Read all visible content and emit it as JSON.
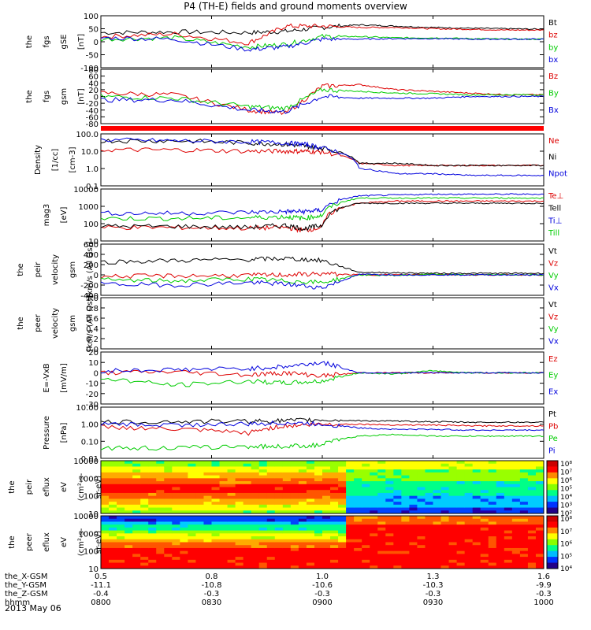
{
  "title": "P4 (TH-E) fields and ground moments overview",
  "date": "2013 May 06",
  "colors": {
    "black": "#000000",
    "red": "#dd0000",
    "green": "#00cc00",
    "blue": "#0000dd",
    "bar_red": "#ff0000",
    "axis": "#000000"
  },
  "chart_data": [
    {
      "type": "line",
      "panel": "fgs_gse",
      "ylabel": [
        "the",
        "fgs",
        "gSE",
        "[nT]"
      ],
      "yticks": [
        "100",
        "50",
        "0",
        "-50",
        "-100"
      ],
      "ylim": [
        -100,
        100
      ],
      "yscale": "linear",
      "legend": [
        {
          "name": "Bt",
          "color": "black"
        },
        {
          "name": "bz",
          "color": "red"
        },
        {
          "name": "by",
          "color": "green"
        },
        {
          "name": "bx",
          "color": "blue"
        }
      ],
      "series": [
        {
          "name": "Bt",
          "color": "black",
          "x": [
            0,
            20,
            40,
            50,
            60,
            70,
            80,
            90,
            100,
            110,
            120
          ],
          "y": [
            35,
            38,
            35,
            40,
            55,
            65,
            60,
            55,
            52,
            50,
            48
          ]
        },
        {
          "name": "bz",
          "color": "red",
          "x": [
            0,
            20,
            40,
            50,
            60,
            70,
            80,
            90,
            100,
            110,
            120
          ],
          "y": [
            20,
            30,
            -5,
            60,
            60,
            55,
            55,
            50,
            48,
            45,
            45
          ]
        },
        {
          "name": "by",
          "color": "green",
          "x": [
            0,
            20,
            40,
            50,
            60,
            70,
            80,
            90,
            100,
            110,
            120
          ],
          "y": [
            10,
            15,
            -20,
            -10,
            20,
            20,
            15,
            15,
            12,
            10,
            10
          ]
        },
        {
          "name": "bx",
          "color": "blue",
          "x": [
            0,
            20,
            40,
            50,
            60,
            70,
            80,
            90,
            100,
            110,
            120
          ],
          "y": [
            15,
            10,
            -30,
            -20,
            10,
            10,
            12,
            12,
            10,
            10,
            10
          ]
        }
      ]
    },
    {
      "type": "line",
      "panel": "fgs_gsm",
      "ylabel": [
        "the",
        "fgs",
        "gsm",
        "[nT]"
      ],
      "yticks": [
        "80",
        "60",
        "40",
        "20",
        "0",
        "-20",
        "-40",
        "-60",
        "-80"
      ],
      "ylim": [
        -80,
        80
      ],
      "yscale": "linear",
      "legend": [
        {
          "name": "Bz",
          "color": "red"
        },
        {
          "name": "By",
          "color": "green"
        },
        {
          "name": "Bx",
          "color": "blue"
        }
      ],
      "series": [
        {
          "name": "Bz",
          "color": "red",
          "x": [
            0,
            20,
            40,
            50,
            60,
            70,
            80,
            90,
            100,
            110,
            120
          ],
          "y": [
            10,
            5,
            -40,
            -50,
            30,
            35,
            20,
            15,
            10,
            5,
            5
          ]
        },
        {
          "name": "By",
          "color": "green",
          "x": [
            0,
            20,
            40,
            50,
            60,
            70,
            80,
            90,
            100,
            110,
            120
          ],
          "y": [
            0,
            -5,
            -30,
            -35,
            20,
            15,
            10,
            8,
            5,
            5,
            5
          ]
        },
        {
          "name": "Bx",
          "color": "blue",
          "x": [
            0,
            20,
            40,
            50,
            60,
            70,
            80,
            90,
            100,
            110,
            120
          ],
          "y": [
            -10,
            -10,
            -40,
            -45,
            0,
            -5,
            -5,
            -5,
            0,
            0,
            0
          ]
        }
      ]
    },
    {
      "type": "line",
      "panel": "density",
      "ylabel": [
        "Density",
        "[1/cc]",
        "[cm-3]"
      ],
      "yticks": [
        "100.0",
        "10.0",
        "1.0",
        "0.1"
      ],
      "ylim": [
        0.1,
        100
      ],
      "yscale": "log",
      "legend": [
        {
          "name": "Ne",
          "color": "red"
        },
        {
          "name": "Ni",
          "color": "black"
        },
        {
          "name": "Npot",
          "color": "blue"
        }
      ],
      "series": [
        {
          "name": "Ne",
          "color": "red",
          "x": [
            0,
            20,
            40,
            50,
            55,
            60,
            70,
            80,
            90,
            100,
            110,
            120
          ],
          "y": [
            12,
            12,
            10,
            10,
            10,
            9,
            2,
            1.5,
            1.5,
            1.5,
            1.5,
            1.5
          ]
        },
        {
          "name": "Ni",
          "color": "black",
          "x": [
            0,
            20,
            40,
            50,
            55,
            60,
            70,
            80,
            90,
            100,
            110,
            120
          ],
          "y": [
            40,
            40,
            30,
            25,
            20,
            15,
            2,
            2,
            1.5,
            1.5,
            1.5,
            1.5
          ]
        },
        {
          "name": "Npot",
          "color": "blue",
          "x": [
            0,
            20,
            40,
            50,
            55,
            60,
            70,
            80,
            90,
            100,
            110,
            120
          ],
          "y": [
            45,
            40,
            35,
            30,
            25,
            15,
            1,
            0.5,
            0.5,
            0.4,
            0.4,
            0.4
          ]
        }
      ]
    },
    {
      "type": "line",
      "panel": "temperature",
      "ylabel": [
        "mag3",
        "[eV]"
      ],
      "yticks": [
        "10000",
        "1000",
        "100",
        "10"
      ],
      "ylim": [
        10,
        10000
      ],
      "yscale": "log",
      "legend": [
        {
          "name": "Te⊥",
          "color": "red"
        },
        {
          "name": "Tell",
          "color": "black"
        },
        {
          "name": "Ti⊥",
          "color": "blue"
        },
        {
          "name": "Till",
          "color": "green"
        }
      ],
      "series": [
        {
          "name": "Te⊥",
          "color": "red",
          "x": [
            0,
            20,
            40,
            50,
            55,
            60,
            70,
            80,
            90,
            100,
            110,
            120
          ],
          "y": [
            60,
            60,
            55,
            60,
            40,
            60,
            1500,
            2000,
            2000,
            2000,
            2000,
            2000
          ]
        },
        {
          "name": "Tell",
          "color": "black",
          "x": [
            0,
            20,
            40,
            50,
            55,
            60,
            70,
            80,
            90,
            100,
            110,
            120
          ],
          "y": [
            70,
            70,
            60,
            80,
            50,
            80,
            1500,
            1500,
            1500,
            1500,
            1500,
            1500
          ]
        },
        {
          "name": "Ti⊥",
          "color": "blue",
          "x": [
            0,
            20,
            40,
            50,
            55,
            60,
            70,
            80,
            90,
            100,
            110,
            120
          ],
          "y": [
            400,
            400,
            450,
            500,
            500,
            600,
            4000,
            4500,
            5000,
            5000,
            5000,
            5000
          ]
        },
        {
          "name": "Till",
          "color": "green",
          "x": [
            0,
            20,
            40,
            50,
            55,
            60,
            70,
            80,
            90,
            100,
            110,
            120
          ],
          "y": [
            200,
            200,
            220,
            250,
            200,
            300,
            3000,
            3000,
            3000,
            3000,
            3000,
            3000
          ]
        }
      ]
    },
    {
      "type": "line",
      "panel": "peir_velocity",
      "ylabel": [
        "the",
        "peir",
        "velocity",
        "gsm",
        "[km/s (All Qs)]"
      ],
      "yticks": [
        "600",
        "400",
        "200",
        "0",
        "-200",
        "-400"
      ],
      "ylim": [
        -400,
        600
      ],
      "yscale": "linear",
      "legend": [
        {
          "name": "Vt",
          "color": "black"
        },
        {
          "name": "Vz",
          "color": "red"
        },
        {
          "name": "Vy",
          "color": "green"
        },
        {
          "name": "Vx",
          "color": "blue"
        }
      ],
      "series": [
        {
          "name": "Vt",
          "color": "black",
          "x": [
            0,
            20,
            40,
            50,
            60,
            70,
            80,
            90,
            100,
            110,
            120
          ],
          "y": [
            250,
            280,
            300,
            320,
            280,
            50,
            40,
            30,
            30,
            30,
            30
          ]
        },
        {
          "name": "Vz",
          "color": "red",
          "x": [
            0,
            20,
            40,
            50,
            60,
            70,
            80,
            90,
            100,
            110,
            120
          ],
          "y": [
            -30,
            -20,
            -10,
            0,
            20,
            0,
            0,
            10,
            0,
            0,
            0
          ]
        },
        {
          "name": "Vy",
          "color": "green",
          "x": [
            0,
            20,
            40,
            50,
            60,
            70,
            80,
            90,
            100,
            110,
            120
          ],
          "y": [
            -100,
            -120,
            -80,
            -120,
            -150,
            0,
            -10,
            10,
            0,
            0,
            0
          ]
        },
        {
          "name": "Vx",
          "color": "blue",
          "x": [
            0,
            20,
            40,
            50,
            60,
            70,
            80,
            90,
            100,
            110,
            120
          ],
          "y": [
            -180,
            -200,
            -150,
            -180,
            -250,
            10,
            0,
            0,
            0,
            0,
            0
          ]
        }
      ]
    },
    {
      "type": "line",
      "panel": "peer_velocity",
      "ylabel": [
        "the",
        "peer",
        "velocity",
        "gsm",
        "[km/s (All Qs)]"
      ],
      "yticks": [
        "1.0",
        "0.8",
        "0.6",
        "0.4",
        "0.2",
        "0.0"
      ],
      "ylim": [
        0,
        1
      ],
      "yscale": "linear",
      "legend": [
        {
          "name": "Vt",
          "color": "black"
        },
        {
          "name": "Vz",
          "color": "red"
        },
        {
          "name": "Vy",
          "color": "green"
        },
        {
          "name": "Vx",
          "color": "blue"
        }
      ],
      "series": []
    },
    {
      "type": "line",
      "panel": "e_field",
      "ylabel": [
        "E=-VxB",
        "[mV/m]"
      ],
      "yticks": [
        "20",
        "10",
        "0",
        "-10",
        "-20",
        "-30"
      ],
      "ylim": [
        -30,
        20
      ],
      "yscale": "linear",
      "legend": [
        {
          "name": "Ez",
          "color": "red"
        },
        {
          "name": "Ey",
          "color": "green"
        },
        {
          "name": "Ex",
          "color": "blue"
        }
      ],
      "series": [
        {
          "name": "Ez",
          "color": "red",
          "x": [
            0,
            20,
            40,
            50,
            60,
            70,
            80,
            90,
            100,
            110,
            120
          ],
          "y": [
            0,
            1,
            -2,
            0,
            -3,
            0,
            0,
            0,
            0,
            0,
            0
          ]
        },
        {
          "name": "Ey",
          "color": "green",
          "x": [
            0,
            20,
            40,
            50,
            60,
            70,
            80,
            90,
            100,
            110,
            120
          ],
          "y": [
            -5,
            -12,
            -8,
            -10,
            -8,
            0,
            -1,
            2,
            0,
            0,
            0
          ]
        },
        {
          "name": "Ex",
          "color": "blue",
          "x": [
            0,
            20,
            40,
            50,
            60,
            70,
            80,
            90,
            100,
            110,
            120
          ],
          "y": [
            2,
            3,
            4,
            6,
            10,
            0,
            0,
            0,
            0,
            0,
            0
          ]
        }
      ]
    },
    {
      "type": "line",
      "panel": "pressure",
      "ylabel": [
        "Pressure",
        "[nPa]"
      ],
      "yticks": [
        "10.00",
        "1.00",
        "0.10",
        "0.01"
      ],
      "ylim": [
        0.01,
        10
      ],
      "yscale": "log",
      "legend": [
        {
          "name": "Pt",
          "color": "black"
        },
        {
          "name": "Pb",
          "color": "red"
        },
        {
          "name": "Pe",
          "color": "green"
        },
        {
          "name": "Pi",
          "color": "blue"
        }
      ],
      "series": [
        {
          "name": "Pt",
          "color": "black",
          "x": [
            0,
            20,
            40,
            50,
            60,
            70,
            80,
            90,
            100,
            110,
            120
          ],
          "y": [
            1.3,
            1.4,
            1.5,
            1.6,
            1.8,
            1.6,
            1.5,
            1.4,
            1.3,
            1.3,
            1.3
          ]
        },
        {
          "name": "Pb",
          "color": "red",
          "x": [
            0,
            20,
            40,
            50,
            60,
            70,
            80,
            90,
            100,
            110,
            120
          ],
          "y": [
            0.7,
            0.5,
            0.3,
            0.8,
            1.0,
            1.0,
            0.9,
            0.9,
            0.8,
            0.8,
            0.8
          ]
        },
        {
          "name": "Pe",
          "color": "green",
          "x": [
            0,
            20,
            40,
            50,
            60,
            70,
            80,
            90,
            100,
            110,
            120
          ],
          "y": [
            0.04,
            0.04,
            0.05,
            0.05,
            0.06,
            0.2,
            0.25,
            0.2,
            0.2,
            0.2,
            0.2
          ]
        },
        {
          "name": "Pi",
          "color": "blue",
          "x": [
            0,
            20,
            40,
            50,
            60,
            70,
            80,
            90,
            100,
            110,
            120
          ],
          "y": [
            1.0,
            0.9,
            1.0,
            1.2,
            1.0,
            0.6,
            0.5,
            0.5,
            0.45,
            0.45,
            0.45
          ]
        }
      ]
    },
    {
      "type": "heatmap",
      "panel": "peir_eflux",
      "ylabel": [
        "the",
        "peir",
        "eflux",
        "eV",
        "(cm²-s-",
        "sr-eV)"
      ],
      "yticks": [
        "10000",
        "1000",
        "100",
        "10"
      ],
      "yscale": "log",
      "colorbar_ticks": [
        "10⁸",
        "10⁷",
        "10⁶",
        "10⁵",
        "10⁴",
        "10³",
        "10²"
      ]
    },
    {
      "type": "heatmap",
      "panel": "peer_eflux",
      "ylabel": [
        "the",
        "peer",
        "eflux",
        "eV",
        "(cm²-s-",
        "sr-eV)"
      ],
      "yticks": [
        "10000",
        "1000",
        "100",
        "10"
      ],
      "yscale": "log",
      "colorbar_ticks": [
        "10⁸",
        "10⁷",
        "10⁶",
        "10⁵",
        "10⁴"
      ]
    }
  ],
  "xaxis": {
    "row_labels": [
      "the_X-GSM",
      "the_Y-GSM",
      "the_Z-GSM",
      "hhmm"
    ],
    "ticks": [
      {
        "x": 0,
        "vals": [
          "0.5",
          "-11.1",
          "-0.4",
          "0800"
        ]
      },
      {
        "x": 30,
        "vals": [
          "0.8",
          "-10.8",
          "-0.3",
          "0830"
        ]
      },
      {
        "x": 60,
        "vals": [
          "1.0",
          "-10.6",
          "-0.3",
          "0900"
        ]
      },
      {
        "x": 90,
        "vals": [
          "1.3",
          "-10.3",
          "-0.3",
          "0930"
        ]
      },
      {
        "x": 120,
        "vals": [
          "1.6",
          "-9.9",
          "-0.3",
          "1000"
        ]
      }
    ],
    "xlim": [
      0,
      120
    ]
  }
}
